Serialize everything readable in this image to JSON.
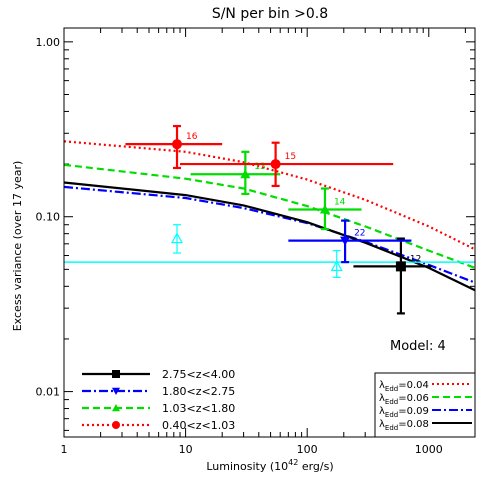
{
  "chart_data": {
    "type": "scatter",
    "title": "S/N per bin >0.8",
    "xlabel_main": "Luminosity (10",
    "xlabel_sup": "42",
    "xlabel_tail": " erg/s)",
    "ylabel": "Excess variance (over 17 year)",
    "xscale": "log",
    "yscale": "log",
    "xlim": [
      1,
      2400
    ],
    "ylim": [
      0.0055,
      1.2
    ],
    "xticks": [
      {
        "v": 1,
        "label": "1"
      },
      {
        "v": 10,
        "label": "10"
      },
      {
        "v": 100,
        "label": "100"
      },
      {
        "v": 1000,
        "label": "1000"
      }
    ],
    "yticks": [
      {
        "v": 0.01,
        "label": "0.01"
      },
      {
        "v": 0.1,
        "label": "0.10"
      },
      {
        "v": 1,
        "label": "1.00"
      }
    ],
    "annotation": "Model: 4",
    "series": [
      {
        "name": "2.75<z<4.00",
        "color": "#000000",
        "marker": "square",
        "points": [
          {
            "x": 590,
            "y": 0.052,
            "xerr": [
              240,
              1050
            ],
            "yerr": [
              0.028,
              0.075
            ],
            "label": "12"
          }
        ]
      },
      {
        "name": "1.80<z<2.75",
        "color": "#0000ff",
        "marker": "triangle-down",
        "points": [
          {
            "x": 205,
            "y": 0.073,
            "xerr": [
              70,
              720
            ],
            "yerr": [
              0.055,
              0.095
            ],
            "label": "22"
          }
        ]
      },
      {
        "name": "1.03<z<1.80",
        "color": "#00dd00",
        "marker": "triangle",
        "points": [
          {
            "x": 31,
            "y": 0.175,
            "xerr": [
              11,
              60
            ],
            "yerr": [
              0.135,
              0.235
            ],
            "label": "13"
          },
          {
            "x": 140,
            "y": 0.11,
            "xerr": [
              70,
              280
            ],
            "yerr": [
              0.085,
              0.145
            ],
            "label": "14"
          }
        ]
      },
      {
        "name": "0.40<z<1.03",
        "color": "#ff0000",
        "marker": "circle",
        "points": [
          {
            "x": 8.5,
            "y": 0.26,
            "xerr": [
              3.2,
              20
            ],
            "yerr": [
              0.19,
              0.33
            ],
            "label": "16"
          },
          {
            "x": 55,
            "y": 0.2,
            "xerr": [
              9,
              510
            ],
            "yerr": [
              0.15,
              0.265
            ],
            "label": "15"
          }
        ]
      },
      {
        "name": "",
        "color": "#00ffff",
        "marker": "open-triangle",
        "points": [
          {
            "x": 8.5,
            "y": 0.075,
            "xerr": null,
            "yerr": [
              0.062,
              0.09
            ],
            "label": ""
          },
          {
            "x": 175,
            "y": 0.052,
            "xerr": null,
            "yerr": [
              0.045,
              0.064
            ],
            "label": ""
          }
        ]
      }
    ],
    "model_curves": [
      {
        "name": "λ_Edd=0.04",
        "color": "#ff0000",
        "dash": "2,3",
        "points": [
          [
            1,
            0.27
          ],
          [
            10,
            0.235
          ],
          [
            30,
            0.205
          ],
          [
            100,
            0.163
          ],
          [
            300,
            0.125
          ],
          [
            1000,
            0.088
          ],
          [
            2400,
            0.065
          ]
        ]
      },
      {
        "name": "λ_Edd=0.06",
        "color": "#00dd00",
        "dash": "7,4",
        "points": [
          [
            1,
            0.198
          ],
          [
            10,
            0.165
          ],
          [
            30,
            0.145
          ],
          [
            100,
            0.115
          ],
          [
            300,
            0.088
          ],
          [
            1000,
            0.064
          ],
          [
            2400,
            0.051
          ]
        ]
      },
      {
        "name": "λ_Edd=0.09",
        "color": "#0000ff",
        "dash": "9,3,2,3",
        "points": [
          [
            1,
            0.148
          ],
          [
            10,
            0.128
          ],
          [
            30,
            0.112
          ],
          [
            100,
            0.092
          ],
          [
            300,
            0.072
          ],
          [
            1000,
            0.053
          ],
          [
            2400,
            0.042
          ]
        ]
      },
      {
        "name": "λ_Edd=0.08",
        "color": "#000000",
        "dash": "",
        "points": [
          [
            1,
            0.157
          ],
          [
            10,
            0.133
          ],
          [
            30,
            0.116
          ],
          [
            100,
            0.093
          ],
          [
            300,
            0.071
          ],
          [
            1000,
            0.051
          ],
          [
            2400,
            0.038
          ]
        ]
      },
      {
        "name": "",
        "color": "#00ffff",
        "dash": "",
        "points": [
          [
            1,
            0.055
          ],
          [
            2400,
            0.055
          ]
        ]
      }
    ],
    "legend_left": {
      "placement": "bottom-left",
      "entries": [
        {
          "text": "2.75<z<4.00",
          "color": "#000000",
          "marker": "square",
          "dash": ""
        },
        {
          "text": "1.80<z<2.75",
          "color": "#0000ff",
          "marker": "triangle-down",
          "dash": "9,3,2,3"
        },
        {
          "text": "1.03<z<1.80",
          "color": "#00dd00",
          "marker": "triangle",
          "dash": "7,4"
        },
        {
          "text": "0.40<z<1.03",
          "color": "#ff0000",
          "marker": "circle",
          "dash": "2,3"
        }
      ]
    },
    "legend_right": {
      "placement": "bottom-right",
      "entries": [
        {
          "main": "λ",
          "sub": "Edd",
          "value": "=0.04",
          "color": "#ff0000",
          "dash": "2,3"
        },
        {
          "main": "λ",
          "sub": "Edd",
          "value": "=0.06",
          "color": "#00dd00",
          "dash": "7,4"
        },
        {
          "main": "λ",
          "sub": "Edd",
          "value": "=0.09",
          "color": "#0000ff",
          "dash": "9,3,2,3"
        },
        {
          "main": "λ",
          "sub": "Edd",
          "value": "=0.08",
          "color": "#000000",
          "dash": ""
        }
      ]
    }
  }
}
